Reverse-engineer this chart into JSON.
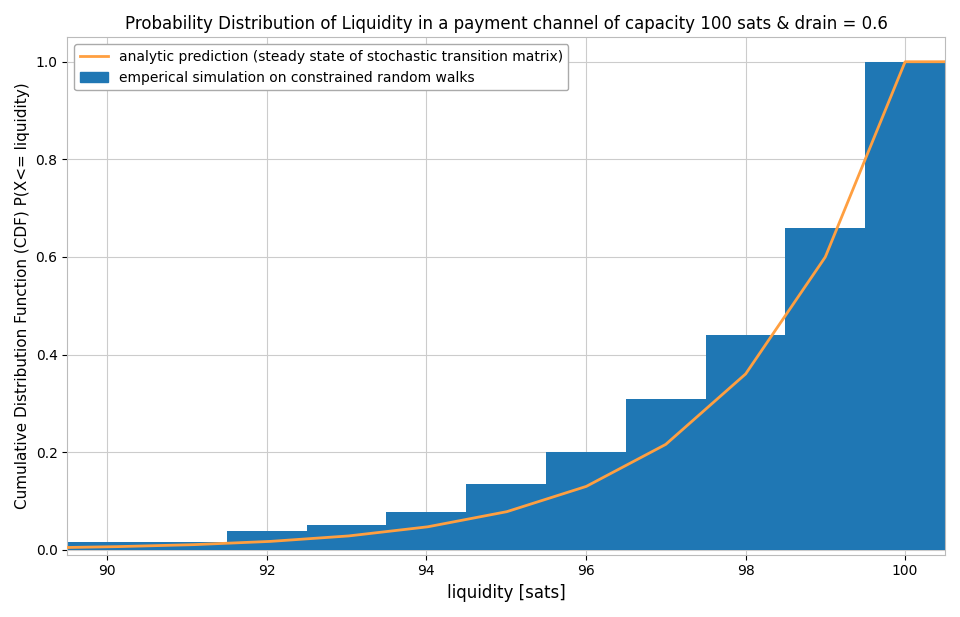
{
  "title": "Probability Distribution of Liquidity in a payment channel of capacity 100 sats & drain = 0.6",
  "xlabel": "liquidity [sats]",
  "ylabel": "Cumulative Distribution Function (CDF) P(X<= liquidity)",
  "xlim": [
    89.5,
    100.5
  ],
  "ylim": [
    -0.01,
    1.05
  ],
  "xticks": [
    90,
    92,
    94,
    96,
    98,
    100
  ],
  "yticks": [
    0.0,
    0.2,
    0.4,
    0.6,
    0.8,
    1.0
  ],
  "bar_color": "#1f77b4",
  "line_color": "#ff9f40",
  "bar_width": 1.0,
  "bar_data": {
    "x": [
      90,
      91,
      92,
      93,
      94,
      95,
      96,
      97,
      98,
      99,
      100
    ],
    "height": [
      0.016,
      0.016,
      0.038,
      0.05,
      0.077,
      0.135,
      0.2,
      0.31,
      0.44,
      0.66,
      1.0
    ]
  },
  "legend_line_label": "analytic prediction (steady state of stochastic transition matrix)",
  "legend_bar_label": "emperical simulation on constrained random walks",
  "grid_color": "#cccccc",
  "background_color": "#ffffff",
  "drain": 0.6,
  "capacity": 100,
  "x_min": 0
}
